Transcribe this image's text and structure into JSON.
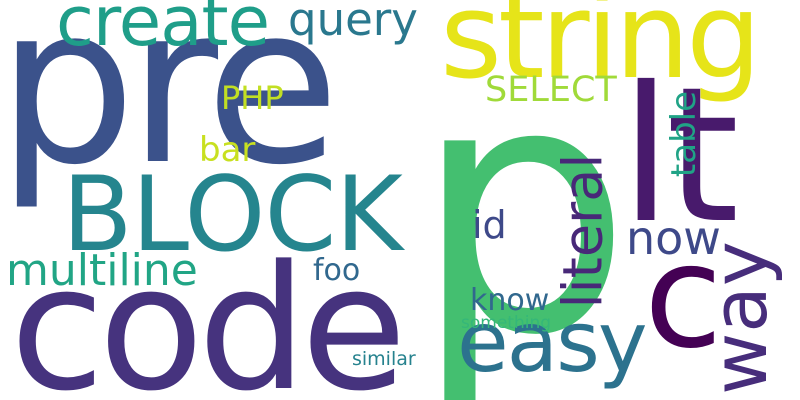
{
  "background": "#ffffff",
  "words": [
    {
      "id": "pre",
      "text": "pre",
      "color": "#3b528b",
      "rotated": false
    },
    {
      "id": "p",
      "text": "p",
      "color": "#44bf70",
      "rotated": false
    },
    {
      "id": "code",
      "text": "code",
      "color": "#46337e",
      "rotated": false
    },
    {
      "id": "string",
      "text": "string",
      "color": "#e6e419",
      "rotated": false
    },
    {
      "id": "lt",
      "text": "lt",
      "color": "#481a6c",
      "rotated": false
    },
    {
      "id": "block",
      "text": "BLOCK",
      "color": "#25858e",
      "rotated": false
    },
    {
      "id": "c",
      "text": "c",
      "color": "#440154",
      "rotated": false
    },
    {
      "id": "create",
      "text": "create",
      "color": "#1f9e89",
      "rotated": false
    },
    {
      "id": "easy",
      "text": "easy",
      "color": "#2c728e",
      "rotated": false
    },
    {
      "id": "way",
      "text": "way",
      "color": "#472d7b",
      "rotated": true
    },
    {
      "id": "multiline",
      "text": "multiline",
      "color": "#21a585",
      "rotated": false
    },
    {
      "id": "literal",
      "text": "literal",
      "color": "#482878",
      "rotated": true
    },
    {
      "id": "now",
      "text": "now",
      "color": "#3e4989",
      "rotated": false
    },
    {
      "id": "query",
      "text": "query",
      "color": "#2a788e",
      "rotated": false
    },
    {
      "id": "select",
      "text": "SELECT",
      "color": "#a0da39",
      "rotated": false
    },
    {
      "id": "table",
      "text": "table",
      "color": "#20a386",
      "rotated": true
    },
    {
      "id": "php",
      "text": "PHP",
      "color": "#c2df23",
      "rotated": false
    },
    {
      "id": "id",
      "text": "id",
      "color": "#3e4989",
      "rotated": false
    },
    {
      "id": "bar",
      "text": "bar",
      "color": "#c8e020",
      "rotated": false
    },
    {
      "id": "foo",
      "text": "foo",
      "color": "#31688e",
      "rotated": false
    },
    {
      "id": "know",
      "text": "know",
      "color": "#31688e",
      "rotated": false
    },
    {
      "id": "something",
      "text": "something",
      "color": "#35b779",
      "rotated": false
    },
    {
      "id": "similar",
      "text": "similar",
      "color": "#26828e",
      "rotated": false
    }
  ]
}
